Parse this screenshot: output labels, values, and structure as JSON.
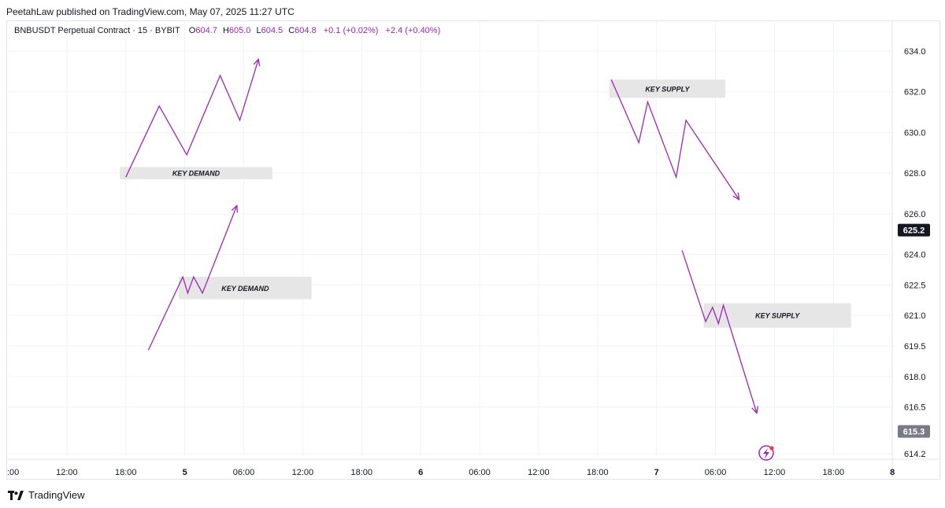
{
  "publisher_line": "PeetahLaw published on TradingView.com, May 07, 2025 11:27 UTC",
  "legend": {
    "symbol": "BNBUSDT Perpetual Contract · 15 · BYBIT",
    "open_label": "O",
    "open": "604.7",
    "high_label": "H",
    "high": "605.0",
    "low_label": "L",
    "low": "604.5",
    "close_label": "C",
    "close": "604.8",
    "change": "+0.1 (+0.02%)",
    "change2": "+2.4 (+0.40%)"
  },
  "footer": {
    "brand": "TradingView"
  },
  "colors": {
    "drawing": "#9c27b0",
    "zone_fill": "#e6e6e6",
    "grid": "#f0f3fa",
    "axis_text": "#131722",
    "last_price_bg": "#131722",
    "secondary_price_bg": "#787b86"
  },
  "chart_data": {
    "type": "line",
    "ylim": [
      613.8,
      635.2
    ],
    "x_unit": "hours",
    "y_ticks": [
      "634.0",
      "632.0",
      "630.0",
      "628.0",
      "626.0",
      "624.0",
      "622.5",
      "621.0",
      "619.5",
      "618.0",
      "616.5",
      "614.2"
    ],
    "y_tick_values": [
      634.0,
      632.0,
      630.0,
      628.0,
      626.0,
      624.0,
      622.5,
      621.0,
      619.5,
      618.0,
      616.5,
      614.2
    ],
    "x_ticks": [
      {
        "label": ":00",
        "t": 0
      },
      {
        "label": "12:00",
        "t": 6
      },
      {
        "label": "18:00",
        "t": 12
      },
      {
        "label": "5",
        "t": 18
      },
      {
        "label": "06:00",
        "t": 24
      },
      {
        "label": "12:00",
        "t": 30
      },
      {
        "label": "18:00",
        "t": 36
      },
      {
        "label": "6",
        "t": 42
      },
      {
        "label": "06:00",
        "t": 48
      },
      {
        "label": "12:00",
        "t": 54
      },
      {
        "label": "18:00",
        "t": 60
      },
      {
        "label": "7",
        "t": 66
      },
      {
        "label": "06:00",
        "t": 72
      },
      {
        "label": "12:00",
        "t": 78
      },
      {
        "label": "18:00",
        "t": 84
      },
      {
        "label": "8",
        "t": 90
      }
    ],
    "price_labels": [
      {
        "text": "625.2",
        "value": 625.2,
        "style": "last"
      },
      {
        "text": "615.3",
        "value": 615.3,
        "style": "secondary"
      }
    ],
    "zones": [
      {
        "label": "KEY DEMAND",
        "t1": 11.4,
        "t2": 26.9,
        "y1": 628.3,
        "y2": 627.7
      },
      {
        "label": "KEY DEMAND",
        "t1": 17.4,
        "t2": 30.9,
        "y1": 622.9,
        "y2": 621.8
      },
      {
        "label": "KEY SUPPLY",
        "t1": 61.2,
        "t2": 73.0,
        "y1": 632.6,
        "y2": 631.7
      },
      {
        "label": "KEY SUPPLY",
        "t1": 70.8,
        "t2": 85.8,
        "y1": 621.6,
        "y2": 620.4
      }
    ],
    "paths": [
      {
        "name": "demand-projection-upper",
        "points": [
          [
            12.0,
            627.8
          ],
          [
            15.4,
            631.3
          ],
          [
            18.2,
            628.9
          ],
          [
            21.6,
            632.8
          ],
          [
            23.6,
            630.6
          ],
          [
            25.5,
            633.6
          ]
        ]
      },
      {
        "name": "demand-projection-lower",
        "points": [
          [
            14.3,
            619.3
          ],
          [
            17.8,
            622.9
          ],
          [
            18.3,
            622.1
          ],
          [
            18.9,
            622.9
          ],
          [
            19.8,
            622.1
          ],
          [
            23.3,
            626.4
          ]
        ]
      },
      {
        "name": "supply-projection-upper",
        "points": [
          [
            61.4,
            632.6
          ],
          [
            64.2,
            629.5
          ],
          [
            65.1,
            631.5
          ],
          [
            68.0,
            627.8
          ],
          [
            69.0,
            630.6
          ],
          [
            74.4,
            626.7
          ]
        ]
      },
      {
        "name": "supply-projection-lower",
        "points": [
          [
            68.6,
            624.2
          ],
          [
            71.0,
            620.7
          ],
          [
            71.7,
            621.4
          ],
          [
            72.3,
            620.6
          ],
          [
            72.8,
            621.5
          ],
          [
            76.2,
            616.2
          ]
        ]
      }
    ]
  }
}
